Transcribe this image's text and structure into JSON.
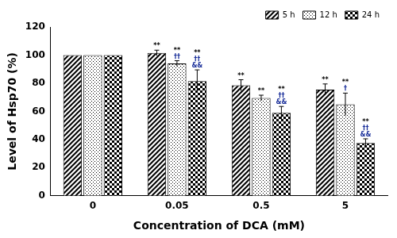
{
  "chart_data": {
    "type": "bar",
    "x_label": "Concentration of DCA (mM)",
    "y_label": "Level of Hsp70 (%)",
    "categories": [
      "0",
      "0.05",
      "0.5",
      "5"
    ],
    "series": [
      {
        "name": "5 h",
        "color": "#000000",
        "values": [
          100,
          101.5,
          78.5,
          75.5
        ],
        "errors": [
          0,
          2,
          4,
          4
        ],
        "annotations": [
          [],
          [
            "**"
          ],
          [
            "**"
          ],
          [
            "**"
          ]
        ]
      },
      {
        "name": "12 h",
        "color": "#000000",
        "values": [
          100,
          94,
          69.5,
          65
        ],
        "errors": [
          0,
          2,
          2,
          8
        ],
        "annotations": [
          [],
          [
            "**",
            "††"
          ],
          [
            "**"
          ],
          [
            "**",
            "†"
          ]
        ]
      },
      {
        "name": "24 h",
        "color": "#000000",
        "values": [
          100,
          81.5,
          59,
          37.5
        ],
        "errors": [
          0,
          8,
          4.5,
          3
        ],
        "annotations": [
          [],
          [
            "**",
            "††",
            "&&"
          ],
          [
            "**",
            "††",
            "&&"
          ],
          [
            "**",
            "††",
            "&&"
          ]
        ]
      }
    ],
    "ylim": [
      0,
      120
    ],
    "yticks": [
      0,
      20,
      40,
      60,
      80,
      100,
      120
    ],
    "grid": false,
    "legend": "upper right"
  }
}
